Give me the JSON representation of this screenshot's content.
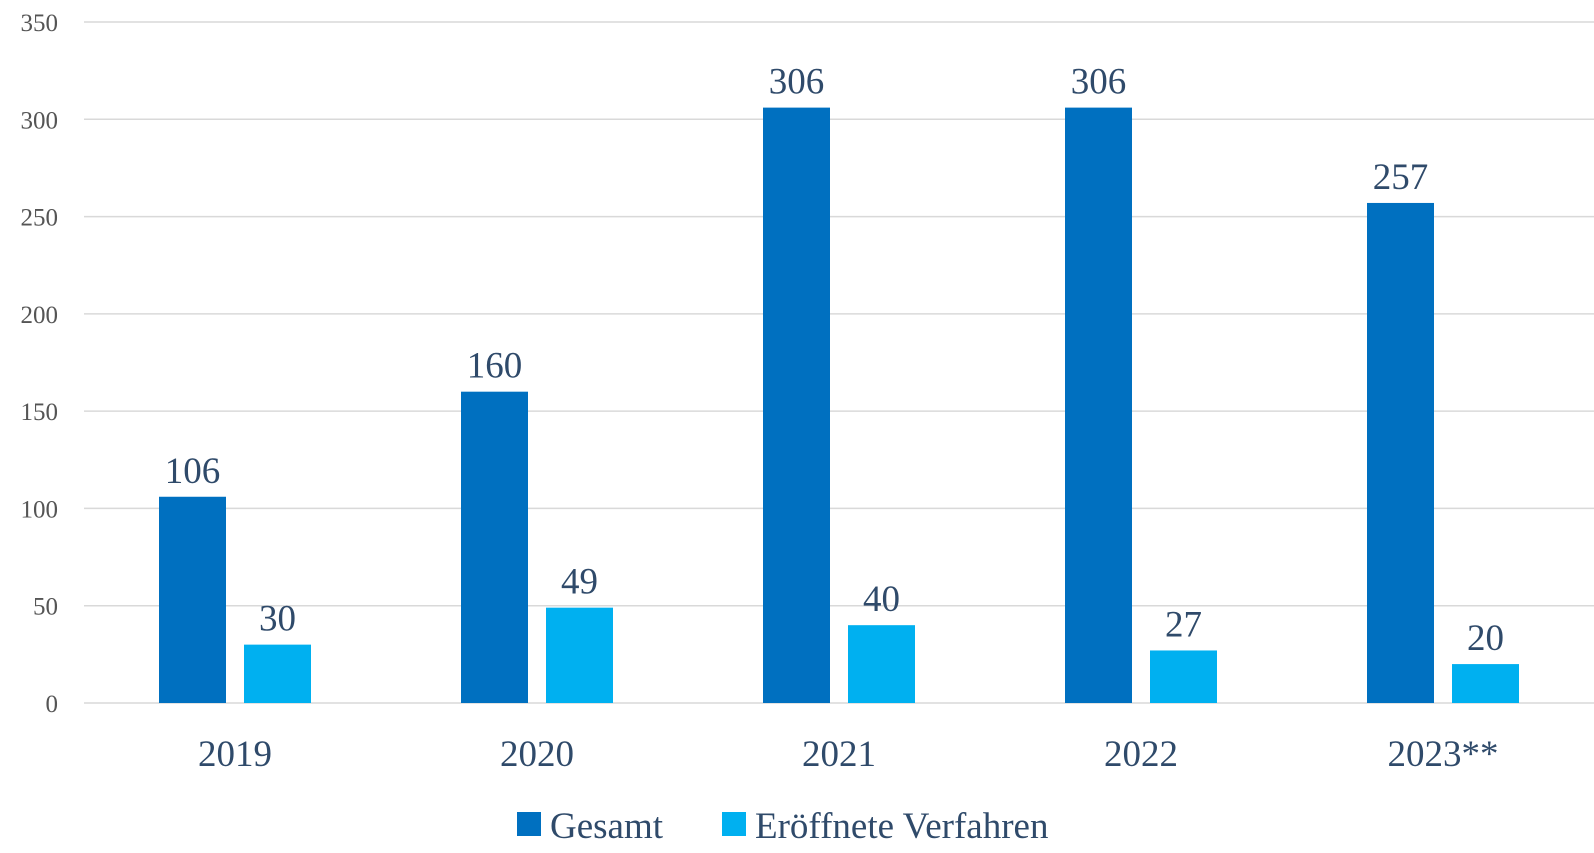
{
  "chart_data": {
    "type": "bar",
    "categories": [
      "2019",
      "2020",
      "2021",
      "2022",
      "2023**"
    ],
    "series": [
      {
        "name": "Gesamt",
        "values": [
          106,
          160,
          306,
          306,
          257
        ],
        "color": "#0070c0"
      },
      {
        "name": "Eröffnete Verfahren",
        "values": [
          30,
          49,
          40,
          27,
          20
        ],
        "color": "#00b0f0"
      }
    ],
    "yticks": [
      "0",
      "50",
      "100",
      "150",
      "200",
      "250",
      "300",
      "350"
    ],
    "ylim": [
      0,
      350
    ],
    "grid": true,
    "legend_position": "bottom-center"
  }
}
